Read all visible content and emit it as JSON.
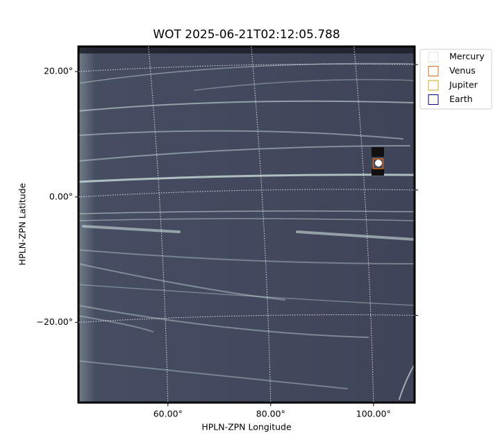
{
  "chart_data": {
    "type": "image",
    "title": "WOT 2025-06-21T02:12:05.788",
    "x_label": "HPLN-ZPN Longitude",
    "y_label": "HPLN-ZPN Latitude",
    "xlim": [
      42.6,
      108.0
    ],
    "ylim": [
      -32.8,
      24.0
    ],
    "xticks": [
      {
        "value": 60,
        "label": "60.00°"
      },
      {
        "value": 80,
        "label": "80.00°"
      },
      {
        "value": 100,
        "label": "100.00°"
      }
    ],
    "yticks": [
      {
        "value": -20,
        "label": "−20.00°"
      },
      {
        "value": 0,
        "label": "0.00°"
      },
      {
        "value": 20,
        "label": "20.00°"
      }
    ],
    "grid": true,
    "legend": "upper right",
    "series": [
      {
        "name": "Mercury",
        "color": "#dddddd"
      },
      {
        "name": "Venus",
        "color": "#d2691e",
        "x": [
          100.9
        ],
        "y": [
          5.3
        ]
      },
      {
        "name": "Jupiter",
        "color": "#daa520"
      },
      {
        "name": "Earth",
        "color": "#000080"
      }
    ]
  }
}
